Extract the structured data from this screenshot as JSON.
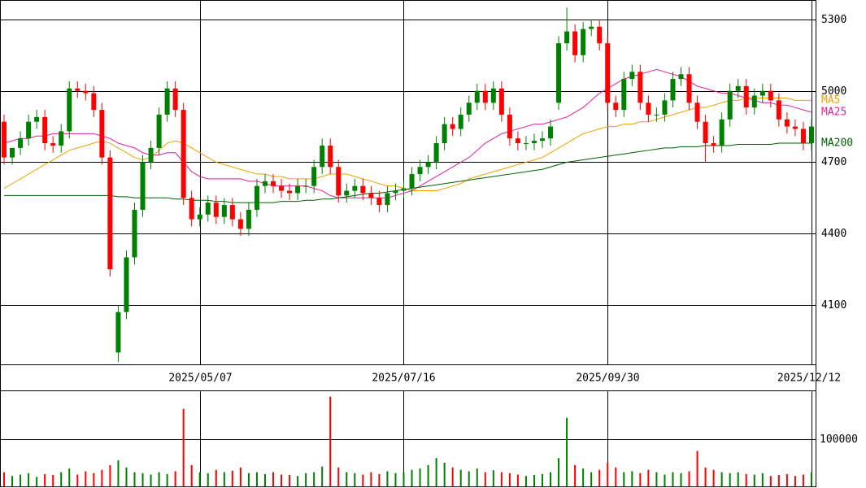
{
  "chart_data": [
    {
      "type": "candlestick",
      "up_color": "#008000",
      "down_color": "#ff0000",
      "grid": true,
      "ylim": [
        3850,
        5382
      ],
      "yticks": [
        4100,
        4400,
        4700,
        5000,
        5300
      ],
      "categories": [
        null,
        null,
        null,
        null,
        null,
        null,
        null,
        null,
        null,
        null,
        null,
        null,
        null,
        null,
        null,
        null,
        null,
        null,
        null,
        null,
        null,
        null,
        null,
        null,
        "2025/05/07",
        null,
        null,
        null,
        null,
        null,
        null,
        null,
        null,
        null,
        null,
        null,
        null,
        null,
        null,
        null,
        null,
        null,
        null,
        null,
        null,
        null,
        null,
        null,
        null,
        "2025/07/16",
        null,
        null,
        null,
        null,
        null,
        null,
        null,
        null,
        null,
        null,
        null,
        null,
        null,
        null,
        null,
        null,
        null,
        null,
        null,
        null,
        null,
        null,
        null,
        null,
        "2025/09/30",
        null,
        null,
        null,
        null,
        null,
        null,
        null,
        null,
        null,
        null,
        null,
        null,
        null,
        null,
        null,
        null,
        null,
        null,
        null,
        null,
        null,
        null,
        null,
        null,
        "2025/12/12"
      ],
      "open": [
        4870,
        4720,
        4760,
        4800,
        4870,
        4890,
        4780,
        4770,
        4830,
        5010,
        5000,
        4990,
        4920,
        4720,
        3900,
        4070,
        4300,
        4500,
        4700,
        4760,
        4900,
        5010,
        4920,
        4550,
        4460,
        4480,
        4530,
        4470,
        4520,
        4460,
        4420,
        4500,
        4600,
        4620,
        4600,
        4580,
        4570,
        4600,
        4600,
        4680,
        4770,
        4680,
        4560,
        4580,
        4600,
        4570,
        4550,
        4520,
        4570,
        4580,
        4590,
        4650,
        4680,
        4700,
        4780,
        4860,
        4840,
        4900,
        4950,
        5000,
        4950,
        5010,
        4900,
        4800,
        4780,
        4780,
        4790,
        4800,
        4950,
        5200,
        5250,
        5150,
        5260,
        5270,
        5200,
        4950,
        4920,
        5050,
        5080,
        4950,
        4900,
        4900,
        4960,
        5050,
        5070,
        4950,
        4870,
        4780,
        4770,
        4880,
        5000,
        5020,
        4930,
        4980,
        5000,
        4960,
        4880,
        4850,
        4840,
        4780
      ],
      "high": [
        4900,
        4750,
        4830,
        4900,
        4920,
        4920,
        4810,
        4860,
        5040,
        5040,
        5030,
        5020,
        4950,
        4750,
        4100,
        4330,
        4530,
        4730,
        4790,
        4930,
        5040,
        5040,
        4950,
        4580,
        4510,
        4560,
        4560,
        4550,
        4550,
        4490,
        4530,
        4630,
        4650,
        4650,
        4630,
        4610,
        4630,
        4630,
        4710,
        4800,
        4800,
        4710,
        4610,
        4630,
        4630,
        4600,
        4580,
        4600,
        4610,
        4620,
        4680,
        4710,
        4730,
        4810,
        4890,
        4890,
        4930,
        4980,
        5030,
        5030,
        5040,
        5040,
        4930,
        4830,
        4810,
        4820,
        4830,
        4880,
        5230,
        5350,
        5280,
        5290,
        5300,
        5300,
        5230,
        4980,
        5080,
        5110,
        5110,
        4980,
        4930,
        4990,
        5080,
        5100,
        5100,
        4980,
        4900,
        4810,
        4910,
        5030,
        5050,
        5050,
        5010,
        5030,
        5030,
        4990,
        4910,
        4880,
        4870,
        4880
      ],
      "low": [
        4690,
        4690,
        4730,
        4770,
        4840,
        4750,
        4740,
        4740,
        4800,
        4970,
        4960,
        4890,
        4690,
        4220,
        3860,
        4040,
        4270,
        4470,
        4670,
        4730,
        4870,
        4890,
        4520,
        4430,
        4430,
        4450,
        4440,
        4440,
        4430,
        4390,
        4390,
        4470,
        4570,
        4570,
        4550,
        4540,
        4540,
        4570,
        4570,
        4650,
        4650,
        4530,
        4530,
        4550,
        4540,
        4520,
        4490,
        4490,
        4540,
        4550,
        4560,
        4620,
        4650,
        4670,
        4750,
        4810,
        4810,
        4870,
        4920,
        4920,
        4920,
        4870,
        4770,
        4750,
        4750,
        4750,
        4760,
        4770,
        4920,
        5170,
        5120,
        5120,
        5230,
        5170,
        4920,
        4890,
        4890,
        5020,
        4920,
        4870,
        4870,
        4870,
        4930,
        5020,
        4920,
        4840,
        4700,
        4740,
        4740,
        4850,
        4970,
        4900,
        4900,
        4950,
        4930,
        4850,
        4820,
        4810,
        4750,
        4750
      ],
      "close": [
        4720,
        4760,
        4800,
        4870,
        4890,
        4780,
        4770,
        4830,
        5010,
        5000,
        4990,
        4920,
        4720,
        4250,
        4070,
        4300,
        4500,
        4700,
        4760,
        4900,
        5010,
        4920,
        4550,
        4460,
        4480,
        4530,
        4470,
        4520,
        4460,
        4420,
        4500,
        4600,
        4620,
        4600,
        4580,
        4570,
        4600,
        4600,
        4680,
        4770,
        4680,
        4560,
        4580,
        4600,
        4570,
        4550,
        4520,
        4570,
        4580,
        4590,
        4650,
        4680,
        4700,
        4780,
        4860,
        4840,
        4900,
        4950,
        5000,
        4950,
        5010,
        4900,
        4800,
        4780,
        4780,
        4790,
        4800,
        4850,
        5200,
        5250,
        5150,
        5260,
        5270,
        5200,
        4950,
        4920,
        5050,
        5080,
        4950,
        4900,
        4900,
        4960,
        5050,
        5070,
        4950,
        4870,
        4780,
        4770,
        4880,
        5000,
        5020,
        4930,
        4980,
        5000,
        4960,
        4880,
        4850,
        4840,
        4780,
        4850
      ],
      "series": [
        {
          "name": "MA5",
          "color": "#f0a000",
          "values": [
            4590,
            4610,
            4630,
            4650,
            4670,
            4690,
            4710,
            4730,
            4750,
            4760,
            4770,
            4780,
            4790,
            4780,
            4760,
            4740,
            4720,
            4710,
            4720,
            4750,
            4780,
            4790,
            4780,
            4760,
            4740,
            4720,
            4700,
            4690,
            4680,
            4670,
            4660,
            4650,
            4650,
            4640,
            4640,
            4630,
            4630,
            4630,
            4630,
            4640,
            4650,
            4650,
            4650,
            4640,
            4630,
            4620,
            4610,
            4600,
            4600,
            4590,
            4580,
            4580,
            4580,
            4580,
            4590,
            4600,
            4610,
            4630,
            4640,
            4650,
            4660,
            4670,
            4680,
            4690,
            4700,
            4710,
            4720,
            4740,
            4760,
            4780,
            4800,
            4820,
            4830,
            4840,
            4850,
            4850,
            4860,
            4860,
            4870,
            4870,
            4880,
            4890,
            4900,
            4910,
            4920,
            4930,
            4930,
            4940,
            4950,
            4960,
            4960,
            4970,
            4970,
            4970,
            4970,
            4970,
            4970,
            4960,
            4960,
            4960
          ]
        },
        {
          "name": "MA25",
          "color": "#e020a0",
          "values": [
            4780,
            4790,
            4800,
            4800,
            4810,
            4810,
            4820,
            4820,
            4820,
            4820,
            4820,
            4820,
            4810,
            4800,
            4780,
            4770,
            4760,
            4740,
            4730,
            4730,
            4740,
            4740,
            4700,
            4660,
            4640,
            4630,
            4630,
            4630,
            4630,
            4630,
            4620,
            4620,
            4610,
            4600,
            4600,
            4600,
            4600,
            4600,
            4590,
            4580,
            4560,
            4550,
            4550,
            4550,
            4550,
            4550,
            4550,
            4550,
            4560,
            4570,
            4580,
            4600,
            4620,
            4640,
            4660,
            4680,
            4700,
            4720,
            4750,
            4780,
            4800,
            4820,
            4830,
            4840,
            4850,
            4860,
            4860,
            4870,
            4880,
            4890,
            4910,
            4930,
            4960,
            4990,
            5010,
            5030,
            5050,
            5060,
            5070,
            5080,
            5090,
            5080,
            5070,
            5060,
            5040,
            5020,
            5010,
            5000,
            4990,
            4990,
            4980,
            4970,
            4960,
            4950,
            4950,
            4940,
            4940,
            4930,
            4920,
            4910
          ]
        },
        {
          "name": "MA200",
          "color": "#006000",
          "values": [
            4560,
            4560,
            4560,
            4560,
            4560,
            4560,
            4560,
            4560,
            4560,
            4560,
            4560,
            4560,
            4560,
            4560,
            4555,
            4555,
            4550,
            4550,
            4550,
            4550,
            4550,
            4545,
            4545,
            4540,
            4540,
            4540,
            4535,
            4535,
            4530,
            4530,
            4530,
            4530,
            4530,
            4530,
            4535,
            4535,
            4535,
            4540,
            4540,
            4545,
            4545,
            4550,
            4555,
            4560,
            4565,
            4570,
            4570,
            4575,
            4580,
            4585,
            4590,
            4595,
            4600,
            4605,
            4610,
            4615,
            4620,
            4625,
            4630,
            4635,
            4640,
            4645,
            4650,
            4655,
            4660,
            4665,
            4670,
            4680,
            4690,
            4700,
            4705,
            4710,
            4715,
            4720,
            4725,
            4730,
            4735,
            4740,
            4745,
            4750,
            4755,
            4760,
            4760,
            4765,
            4765,
            4765,
            4770,
            4770,
            4770,
            4770,
            4775,
            4775,
            4775,
            4775,
            4775,
            4780,
            4780,
            4780,
            4780,
            4780
          ]
        }
      ]
    },
    {
      "type": "bar",
      "ylim": [
        0,
        203000
      ],
      "yticks": [
        100000
      ],
      "grid": true,
      "values": [
        30000,
        22000,
        25000,
        28000,
        20000,
        26000,
        24000,
        30000,
        38000,
        25000,
        32000,
        28000,
        35000,
        45000,
        55000,
        40000,
        30000,
        28000,
        25000,
        30000,
        26000,
        32000,
        164000,
        45000,
        30000,
        28000,
        35000,
        30000,
        33000,
        40000,
        28000,
        30000,
        26000,
        30000,
        25000,
        24000,
        22000,
        28000,
        30000,
        42000,
        190000,
        40000,
        30000,
        28000,
        25000,
        30000,
        26000,
        32000,
        28000,
        30000,
        35000,
        38000,
        45000,
        60000,
        50000,
        40000,
        35000,
        32000,
        38000,
        30000,
        34000,
        30000,
        28000,
        25000,
        22000,
        24000,
        26000,
        30000,
        60000,
        145000,
        45000,
        38000,
        30000,
        35000,
        50000,
        40000,
        30000,
        32000,
        28000,
        35000,
        30000,
        25000,
        30000,
        28000,
        32000,
        75000,
        40000,
        35000,
        30000,
        28000,
        30000,
        26000,
        25000,
        28000,
        22000,
        24000,
        26000,
        22000,
        25000,
        30000
      ]
    }
  ]
}
